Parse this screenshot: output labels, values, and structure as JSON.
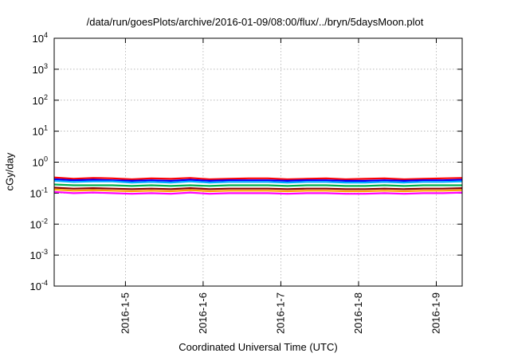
{
  "chart_data": {
    "type": "line",
    "title": "/data/run/goesPlots/archive/2016-01-09/08:00/flux/../bryn/5daysMoon.plot",
    "xlabel": "Coordinated Universal Time (UTC)",
    "ylabel": "cGy/day",
    "y_scale": "log",
    "ylim": [
      0.0001,
      10000
    ],
    "xlim": [
      "2016-01-04T02:00",
      "2016-01-09T08:00"
    ],
    "y_ticks": [
      {
        "base": "10",
        "exp": "-4"
      },
      {
        "base": "10",
        "exp": "-3"
      },
      {
        "base": "10",
        "exp": "-2"
      },
      {
        "base": "10",
        "exp": "-1"
      },
      {
        "base": "10",
        "exp": "0"
      },
      {
        "base": "10",
        "exp": "1"
      },
      {
        "base": "10",
        "exp": "2"
      },
      {
        "base": "10",
        "exp": "3"
      },
      {
        "base": "10",
        "exp": "4"
      }
    ],
    "x_ticks": [
      {
        "label": "2016-1-5",
        "date": "2016-01-05T00:00"
      },
      {
        "label": "2016-1-6",
        "date": "2016-01-06T00:00"
      },
      {
        "label": "2016-1-7",
        "date": "2016-01-07T00:00"
      },
      {
        "label": "2016-1-8",
        "date": "2016-01-08T00:00"
      },
      {
        "label": "2016-1-9",
        "date": "2016-01-09T00:00"
      }
    ],
    "grid": true,
    "legend": "none",
    "x": [
      "2016-01-04T02:00",
      "2016-01-04T08:00",
      "2016-01-04T14:00",
      "2016-01-04T20:00",
      "2016-01-05T02:00",
      "2016-01-05T08:00",
      "2016-01-05T14:00",
      "2016-01-05T20:00",
      "2016-01-06T02:00",
      "2016-01-06T08:00",
      "2016-01-06T14:00",
      "2016-01-06T20:00",
      "2016-01-07T02:00",
      "2016-01-07T08:00",
      "2016-01-07T14:00",
      "2016-01-07T20:00",
      "2016-01-08T02:00",
      "2016-01-08T08:00",
      "2016-01-08T14:00",
      "2016-01-08T20:00",
      "2016-01-09T02:00",
      "2016-01-09T08:00"
    ],
    "series": [
      {
        "color": "#ff0000",
        "values": [
          0.32,
          0.29,
          0.31,
          0.3,
          0.28,
          0.3,
          0.29,
          0.31,
          0.28,
          0.29,
          0.3,
          0.3,
          0.28,
          0.29,
          0.3,
          0.28,
          0.29,
          0.3,
          0.28,
          0.29,
          0.3,
          0.31
        ]
      },
      {
        "color": "#0000ff",
        "values": [
          0.28,
          0.26,
          0.27,
          0.26,
          0.25,
          0.26,
          0.25,
          0.27,
          0.25,
          0.26,
          0.26,
          0.26,
          0.25,
          0.26,
          0.26,
          0.25,
          0.25,
          0.26,
          0.25,
          0.26,
          0.26,
          0.27
        ]
      },
      {
        "color": "#00aaff",
        "values": [
          0.25,
          0.23,
          0.24,
          0.24,
          0.22,
          0.23,
          0.22,
          0.24,
          0.22,
          0.23,
          0.23,
          0.23,
          0.22,
          0.23,
          0.23,
          0.22,
          0.22,
          0.23,
          0.22,
          0.23,
          0.23,
          0.24
        ]
      },
      {
        "color": "#00b050",
        "values": [
          0.19,
          0.18,
          0.18,
          0.18,
          0.17,
          0.18,
          0.17,
          0.18,
          0.17,
          0.18,
          0.18,
          0.18,
          0.17,
          0.18,
          0.18,
          0.17,
          0.17,
          0.18,
          0.17,
          0.18,
          0.18,
          0.18
        ]
      },
      {
        "color": "#8b0000",
        "values": [
          0.15,
          0.14,
          0.145,
          0.14,
          0.135,
          0.14,
          0.135,
          0.145,
          0.135,
          0.14,
          0.14,
          0.14,
          0.135,
          0.14,
          0.14,
          0.135,
          0.135,
          0.14,
          0.135,
          0.14,
          0.14,
          0.145
        ]
      },
      {
        "color": "#ffa500",
        "values": [
          0.13,
          0.12,
          0.125,
          0.12,
          0.115,
          0.12,
          0.115,
          0.125,
          0.115,
          0.12,
          0.12,
          0.12,
          0.115,
          0.12,
          0.12,
          0.115,
          0.115,
          0.12,
          0.115,
          0.12,
          0.12,
          0.125
        ]
      },
      {
        "color": "#ff00ff",
        "values": [
          0.11,
          0.1,
          0.105,
          0.1,
          0.095,
          0.1,
          0.095,
          0.105,
          0.095,
          0.1,
          0.1,
          0.1,
          0.095,
          0.1,
          0.1,
          0.095,
          0.095,
          0.1,
          0.095,
          0.1,
          0.1,
          0.105
        ]
      }
    ]
  }
}
